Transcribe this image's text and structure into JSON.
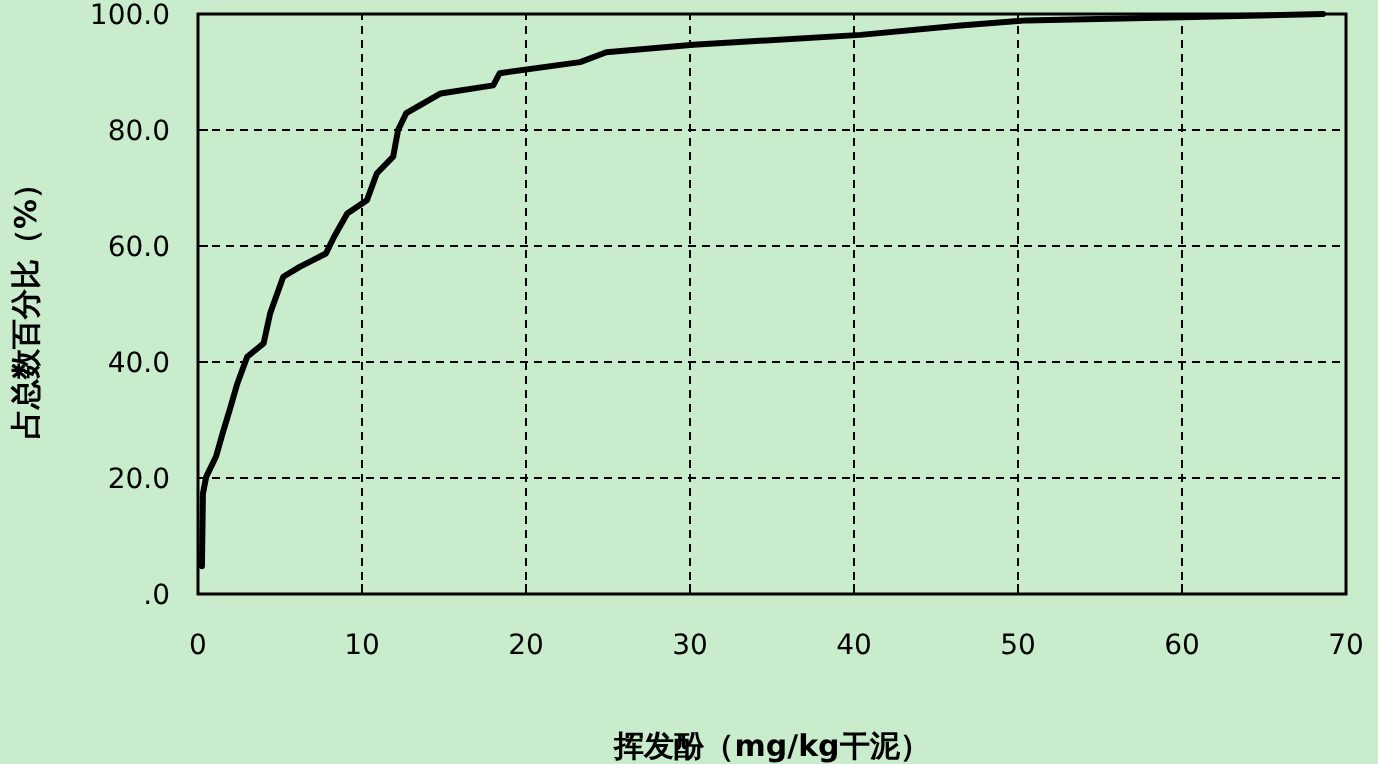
{
  "chart_data": {
    "type": "line",
    "xlabel": "挥发酚（mg/kg干泥）",
    "ylabel": "占总数百分比（%）",
    "xlim": [
      0,
      70
    ],
    "ylim": [
      0,
      100
    ],
    "xticks": [
      0,
      10,
      20,
      30,
      40,
      50,
      60,
      70
    ],
    "yticks": [
      {
        "value": 0,
        "label": ".0"
      },
      {
        "value": 20,
        "label": "20.0"
      },
      {
        "value": 40,
        "label": "40.0"
      },
      {
        "value": 60,
        "label": "60.0"
      },
      {
        "value": 80,
        "label": "80.0"
      },
      {
        "value": 100,
        "label": "100.0"
      }
    ],
    "grid": true,
    "marker": "none",
    "line_style": "solid",
    "series": [
      {
        "color": "#000000",
        "x": [
          0.24,
          0.3,
          0.5,
          1.1,
          1.5,
          2.0,
          2.4,
          3.0,
          4.0,
          4.4,
          5.2,
          6.2,
          7.8,
          8.3,
          9.1,
          10.3,
          10.9,
          11.9,
          12.2,
          12.7,
          14.8,
          18.0,
          18.4,
          23.3,
          24.9,
          30.2,
          40.4,
          46.5,
          50.5,
          60.7,
          68.6
        ],
        "values": [
          4.8,
          17.3,
          20.2,
          23.7,
          27.7,
          32.4,
          36.3,
          40.9,
          43.2,
          48.4,
          54.7,
          56.4,
          58.7,
          61.6,
          65.6,
          67.9,
          72.5,
          75.4,
          80.0,
          82.9,
          86.3,
          87.7,
          89.8,
          91.7,
          93.4,
          94.7,
          96.4,
          98.0,
          98.9,
          99.5,
          100
        ]
      }
    ]
  }
}
